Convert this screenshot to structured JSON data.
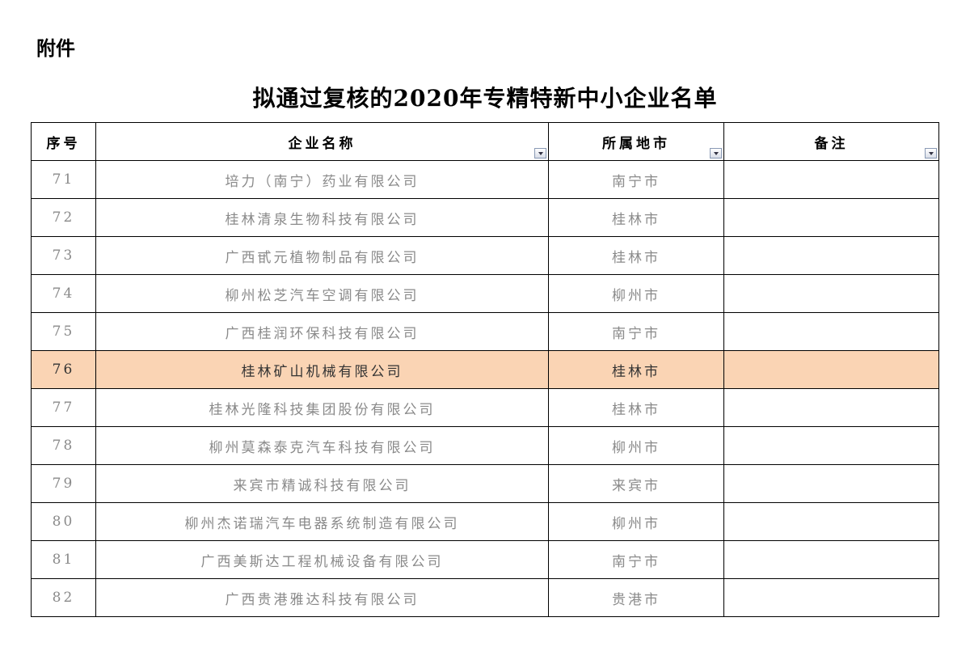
{
  "attachment_label": "附件",
  "title": "拟通过复核的2020年专精特新中小企业名单",
  "highlight_color": "#fad4b4",
  "columns": [
    "序号",
    "企业名称",
    "所属地市",
    "备注"
  ],
  "rows": [
    {
      "no": "71",
      "name": "培力（南宁）药业有限公司",
      "city": "南宁市",
      "note": ""
    },
    {
      "no": "72",
      "name": "桂林清泉生物科技有限公司",
      "city": "桂林市",
      "note": ""
    },
    {
      "no": "73",
      "name": "广西甙元植物制品有限公司",
      "city": "桂林市",
      "note": ""
    },
    {
      "no": "74",
      "name": "柳州松芝汽车空调有限公司",
      "city": "柳州市",
      "note": ""
    },
    {
      "no": "75",
      "name": "广西桂润环保科技有限公司",
      "city": "南宁市",
      "note": ""
    },
    {
      "no": "76",
      "name": "桂林矿山机械有限公司",
      "city": "桂林市",
      "note": "",
      "highlighted": true
    },
    {
      "no": "77",
      "name": "桂林光隆科技集团股份有限公司",
      "city": "桂林市",
      "note": ""
    },
    {
      "no": "78",
      "name": "柳州莫森泰克汽车科技有限公司",
      "city": "柳州市",
      "note": ""
    },
    {
      "no": "79",
      "name": "来宾市精诚科技有限公司",
      "city": "来宾市",
      "note": ""
    },
    {
      "no": "80",
      "name": "柳州杰诺瑞汽车电器系统制造有限公司",
      "city": "柳州市",
      "note": ""
    },
    {
      "no": "81",
      "name": "广西美斯达工程机械设备有限公司",
      "city": "南宁市",
      "note": ""
    },
    {
      "no": "82",
      "name": "广西贵港雅达科技有限公司",
      "city": "贵港市",
      "note": ""
    }
  ]
}
